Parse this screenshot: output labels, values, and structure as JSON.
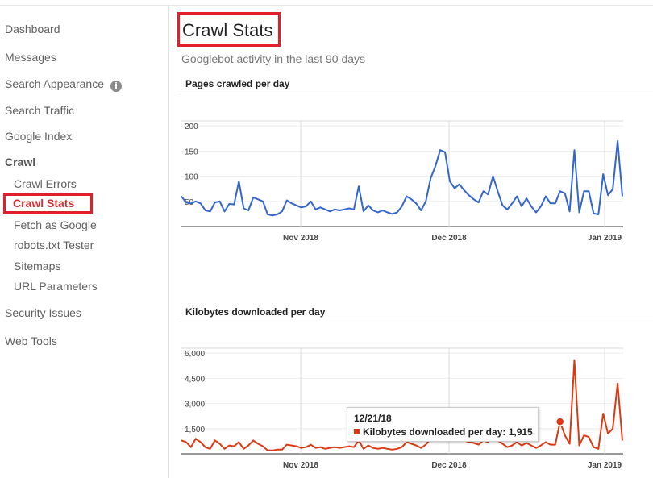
{
  "sidebar": {
    "items": [
      {
        "label": "Dashboard",
        "kind": "top"
      },
      {
        "label": "Messages",
        "kind": "top"
      },
      {
        "label": "Search Appearance",
        "kind": "top",
        "info_icon": "info-icon"
      },
      {
        "label": "Search Traffic",
        "kind": "top"
      },
      {
        "label": "Google Index",
        "kind": "top"
      },
      {
        "label": "Crawl",
        "kind": "group-header"
      },
      {
        "label": "Crawl Errors",
        "kind": "sub"
      },
      {
        "label": "Crawl Stats",
        "kind": "sub",
        "active": true
      },
      {
        "label": "Fetch as Google",
        "kind": "sub"
      },
      {
        "label": "robots.txt Tester",
        "kind": "sub"
      },
      {
        "label": "Sitemaps",
        "kind": "sub"
      },
      {
        "label": "URL Parameters",
        "kind": "sub"
      },
      {
        "label": "Security Issues",
        "kind": "top"
      },
      {
        "label": "Web Tools",
        "kind": "top"
      }
    ],
    "info_icon_glyph": "i"
  },
  "page": {
    "title": "Crawl Stats",
    "subtitle": "Googlebot activity in the last 90 days"
  },
  "colors": {
    "highlight_border": "#e0202a",
    "pages_series": "#3366cc",
    "kb_series": "#dc3912"
  },
  "tooltip": {
    "date": "12/21/18",
    "text": "Kilobytes downloaded per day: 1,915"
  },
  "chart_data": [
    {
      "type": "line",
      "title": "Pages crawled per day",
      "x_tick_labels": [
        "Nov 2018",
        "Dec 2018",
        "Jan 2019"
      ],
      "y_ticks": [
        50,
        100,
        150,
        200
      ],
      "ylim": [
        0,
        210
      ],
      "grid": true,
      "series": [
        {
          "values": [
            60,
            48,
            46,
            50,
            46,
            32,
            30,
            48,
            50,
            30,
            45,
            44,
            90,
            36,
            32,
            58,
            54,
            50,
            24,
            22,
            24,
            30,
            52,
            46,
            42,
            38,
            40,
            50,
            34,
            38,
            34,
            30,
            34,
            32,
            34,
            36,
            34,
            80,
            30,
            42,
            32,
            28,
            32,
            28,
            25,
            28,
            40,
            60,
            54,
            46,
            32,
            50,
            96,
            120,
            152,
            148,
            90,
            76,
            84,
            72,
            62,
            54,
            48,
            70,
            64,
            100,
            70,
            42,
            34,
            46,
            60,
            40,
            56,
            40,
            28,
            40,
            60,
            46,
            46,
            70,
            66,
            30,
            152,
            28,
            70,
            70,
            26,
            24,
            104,
            62,
            74,
            170,
            60
          ]
        }
      ]
    },
    {
      "type": "line",
      "title": "Kilobytes downloaded per day",
      "x_tick_labels": [
        "Nov 2018",
        "Dec 2018",
        "Jan 2019"
      ],
      "y_tick_labels": [
        "1,500",
        "3,000",
        "4,500",
        "6,000"
      ],
      "y_ticks": [
        1500,
        3000,
        4500,
        6000
      ],
      "ylim": [
        0,
        6300
      ],
      "grid": true,
      "highlight": {
        "date": "12/21/18",
        "value": 1915
      },
      "series": [
        {
          "values": [
            800,
            700,
            400,
            900,
            700,
            400,
            300,
            800,
            600,
            300,
            500,
            450,
            700,
            300,
            500,
            800,
            600,
            450,
            200,
            200,
            250,
            250,
            550,
            500,
            450,
            350,
            400,
            550,
            350,
            400,
            300,
            350,
            400,
            350,
            400,
            450,
            400,
            800,
            300,
            500,
            350,
            300,
            350,
            300,
            250,
            300,
            400,
            700,
            600,
            500,
            350,
            550,
            900,
            1500,
            1900,
            1800,
            1200,
            900,
            1000,
            800,
            700,
            650,
            550,
            800,
            700,
            1300,
            800,
            600,
            400,
            500,
            700,
            500,
            650,
            500,
            350,
            500,
            700,
            550,
            550,
            1915,
            1100,
            600,
            5600,
            500,
            1100,
            1000,
            400,
            300,
            2400,
            1200,
            1500,
            4200,
            800
          ]
        }
      ]
    }
  ]
}
